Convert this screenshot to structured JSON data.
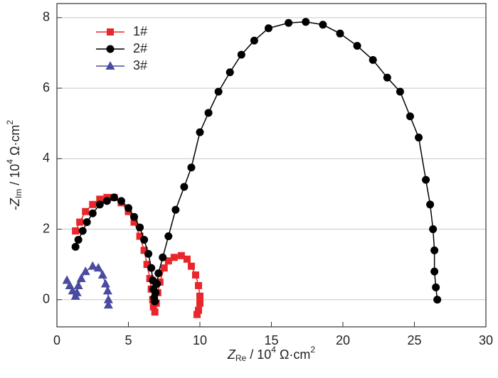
{
  "chart_data": {
    "type": "line",
    "x_label": [
      "Z",
      "Re",
      " / 10",
      "4",
      " Ω·cm",
      "2"
    ],
    "y_label": [
      "-Z",
      "Im",
      " / 10",
      "4",
      " Ω·cm",
      "2"
    ],
    "xlim": [
      0,
      30
    ],
    "xticks": [
      0,
      5,
      10,
      15,
      20,
      25,
      30
    ],
    "ylim": [
      -0.77,
      8.4
    ],
    "yticks": [
      0,
      2,
      4,
      6,
      8
    ],
    "grid": "y",
    "legend": "upper left",
    "series": [
      {
        "name": "1#",
        "color": "#e8262b",
        "marker": "square",
        "x": [
          1.3,
          1.6,
          2.0,
          2.5,
          3.0,
          3.5,
          4.0,
          4.5,
          5.0,
          5.4,
          5.8,
          6.1,
          6.3,
          6.5,
          6.6,
          6.7,
          6.75,
          6.85,
          6.95,
          7.05,
          7.2,
          7.5,
          7.8,
          8.2,
          8.7,
          9.1,
          9.4,
          9.7,
          9.9,
          10.0,
          10.0,
          9.9,
          9.8
        ],
        "values": [
          1.95,
          2.2,
          2.5,
          2.7,
          2.85,
          2.9,
          2.9,
          2.75,
          2.5,
          2.2,
          1.8,
          1.4,
          1.0,
          0.6,
          0.3,
          0.0,
          -0.2,
          -0.35,
          -0.1,
          0.2,
          0.5,
          0.9,
          1.1,
          1.2,
          1.25,
          1.15,
          0.95,
          0.7,
          0.4,
          0.1,
          -0.1,
          -0.3,
          -0.42
        ]
      },
      {
        "name": "2#",
        "color": "#000000",
        "marker": "circle",
        "x": [
          1.3,
          1.5,
          1.8,
          2.1,
          2.5,
          3.0,
          3.5,
          4.0,
          4.5,
          5.0,
          5.4,
          5.8,
          6.1,
          6.4,
          6.6,
          6.7,
          6.75,
          6.8,
          6.85,
          6.9,
          7.0,
          7.1,
          7.4,
          7.8,
          8.3,
          8.9,
          9.4,
          10.0,
          10.6,
          11.3,
          12.1,
          12.9,
          13.8,
          14.8,
          16.2,
          17.4,
          18.6,
          19.8,
          21.0,
          22.1,
          23.1,
          24.0,
          24.7,
          25.3,
          25.8,
          26.1,
          26.3,
          26.4,
          26.4,
          26.5,
          26.6
        ],
        "values": [
          1.5,
          1.7,
          1.95,
          2.2,
          2.45,
          2.7,
          2.8,
          2.9,
          2.8,
          2.6,
          2.35,
          2.05,
          1.7,
          1.3,
          0.9,
          0.55,
          0.3,
          0.05,
          -0.05,
          0.2,
          0.45,
          0.75,
          1.2,
          1.8,
          2.55,
          3.2,
          3.75,
          4.75,
          5.3,
          5.9,
          6.45,
          6.95,
          7.35,
          7.7,
          7.85,
          7.88,
          7.8,
          7.55,
          7.2,
          6.8,
          6.3,
          5.9,
          5.2,
          4.6,
          3.4,
          2.7,
          2.0,
          1.4,
          0.8,
          0.35,
          0.0
        ]
      },
      {
        "name": "3#",
        "color": "#4a4aa0",
        "marker": "triangle",
        "x": [
          0.7,
          0.9,
          1.1,
          1.3,
          1.4,
          1.5,
          1.7,
          2.0,
          2.5,
          2.9,
          3.2,
          3.4,
          3.55,
          3.6,
          3.6
        ],
        "values": [
          0.55,
          0.4,
          0.25,
          0.1,
          0.2,
          0.4,
          0.6,
          0.8,
          0.95,
          0.9,
          0.7,
          0.45,
          0.25,
          0.0,
          -0.15
        ]
      }
    ]
  }
}
